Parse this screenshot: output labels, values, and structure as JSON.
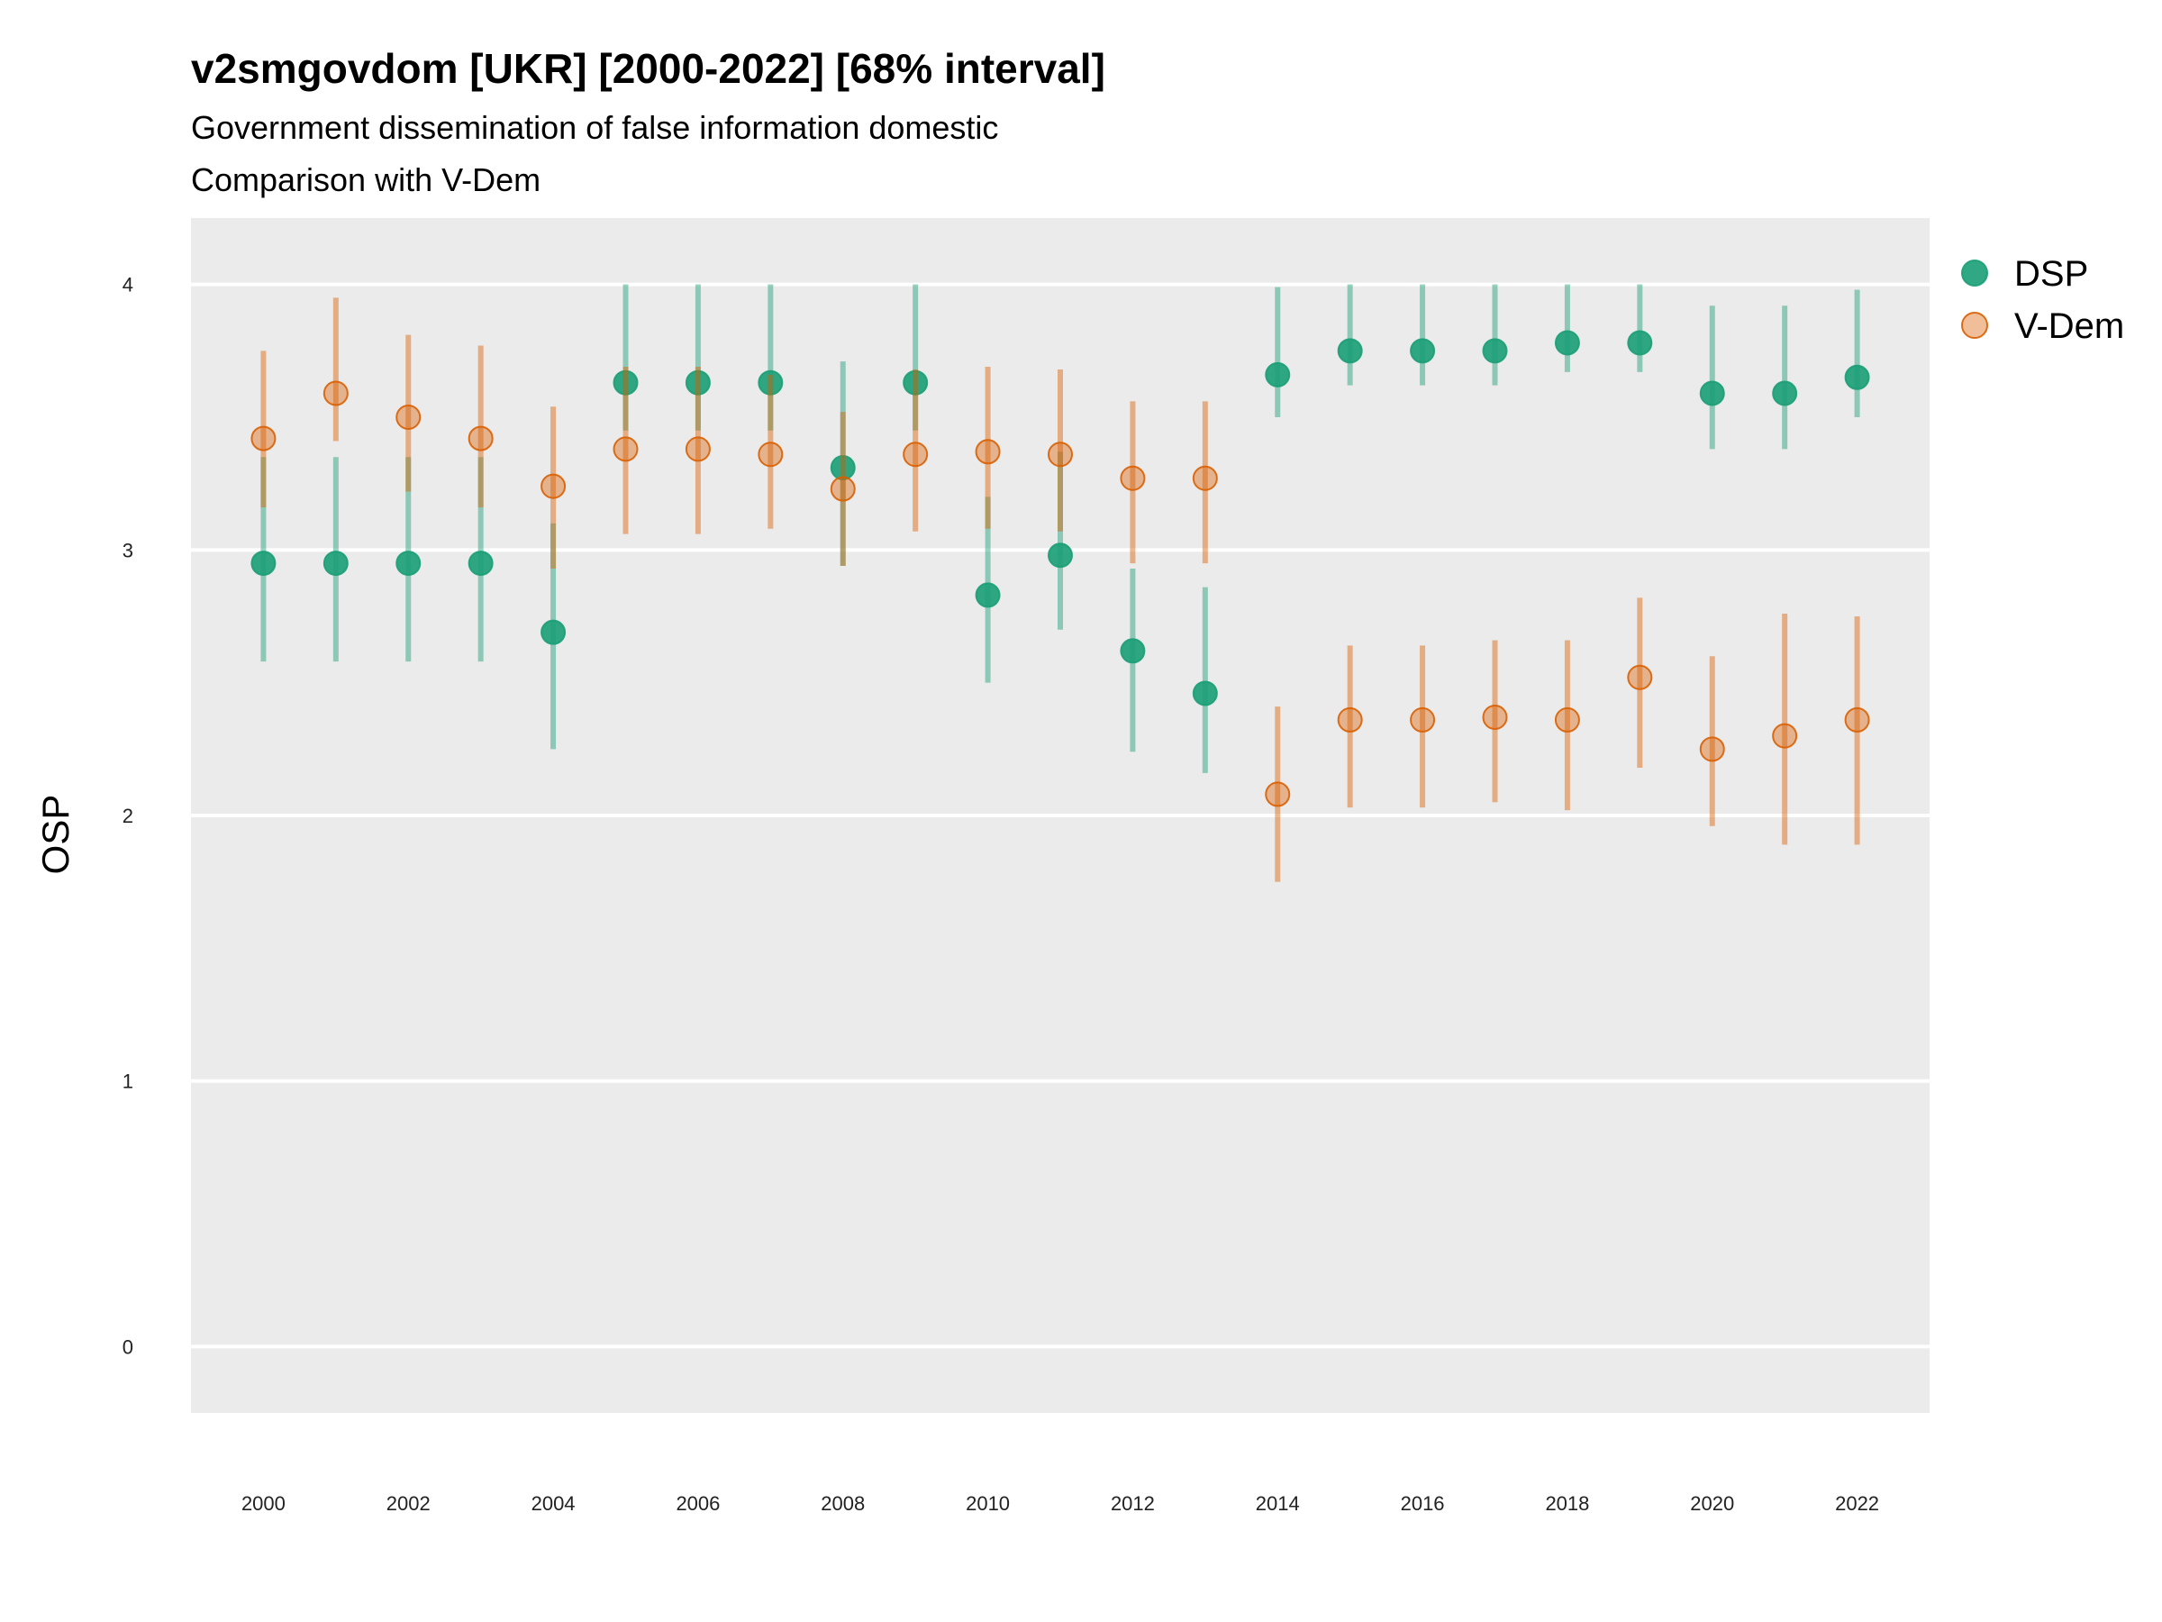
{
  "chart_data": {
    "type": "scatter",
    "title": "v2smgovdom [UKR] [2000-2022] [68% interval]",
    "subtitle_lines": [
      "Government dissemination of false information domestic",
      "Comparison with V-Dem"
    ],
    "xlabel": "",
    "ylabel": "OSP",
    "ylim": [
      -0.25,
      4.25
    ],
    "xlim": [
      1999,
      2023
    ],
    "y_ticks": [
      "0",
      "1",
      "2",
      "3",
      "4"
    ],
    "x_ticks": [
      "2000",
      "2002",
      "2004",
      "2006",
      "2008",
      "2010",
      "2012",
      "2014",
      "2016",
      "2018",
      "2020",
      "2022"
    ],
    "grid": true,
    "legend_position": "right",
    "x": [
      2000,
      2001,
      2002,
      2003,
      2004,
      2005,
      2006,
      2007,
      2008,
      2009,
      2010,
      2011,
      2012,
      2013,
      2014,
      2015,
      2016,
      2017,
      2018,
      2019,
      2020,
      2021,
      2022
    ],
    "series": [
      {
        "name": "DSP",
        "color": "#1b9e77",
        "values": [
          2.95,
          2.95,
          2.95,
          2.95,
          2.69,
          3.63,
          3.63,
          3.63,
          3.31,
          3.63,
          2.83,
          2.98,
          2.62,
          2.46,
          3.66,
          3.75,
          3.75,
          3.75,
          3.78,
          3.78,
          3.59,
          3.59,
          3.65
        ],
        "lower": [
          2.58,
          2.58,
          2.58,
          2.58,
          2.25,
          3.45,
          3.45,
          3.45,
          2.94,
          3.45,
          2.5,
          2.7,
          2.24,
          2.16,
          3.5,
          3.62,
          3.62,
          3.62,
          3.67,
          3.67,
          3.38,
          3.38,
          3.5
        ],
        "upper": [
          3.35,
          3.35,
          3.35,
          3.35,
          3.1,
          4.0,
          4.0,
          4.0,
          3.71,
          4.0,
          3.2,
          3.37,
          2.93,
          2.86,
          3.99,
          4.0,
          4.0,
          4.0,
          4.0,
          4.0,
          3.92,
          3.92,
          3.98
        ]
      },
      {
        "name": "V-Dem",
        "color": "#d95f02",
        "values": [
          3.42,
          3.59,
          3.5,
          3.42,
          3.24,
          3.38,
          3.38,
          3.36,
          3.23,
          3.36,
          3.37,
          3.36,
          3.27,
          3.27,
          2.08,
          2.36,
          2.36,
          2.37,
          2.36,
          2.52,
          2.25,
          2.3,
          2.36
        ],
        "lower": [
          3.16,
          3.41,
          3.22,
          3.16,
          2.93,
          3.06,
          3.06,
          3.08,
          2.94,
          3.07,
          3.08,
          3.07,
          2.95,
          2.95,
          1.75,
          2.03,
          2.03,
          2.05,
          2.02,
          2.18,
          1.96,
          1.89,
          1.89
        ],
        "upper": [
          3.75,
          3.95,
          3.81,
          3.77,
          3.54,
          3.69,
          3.69,
          3.66,
          3.52,
          3.68,
          3.69,
          3.68,
          3.56,
          3.56,
          2.41,
          2.64,
          2.64,
          2.66,
          2.66,
          2.82,
          2.6,
          2.76,
          2.75
        ]
      }
    ]
  }
}
